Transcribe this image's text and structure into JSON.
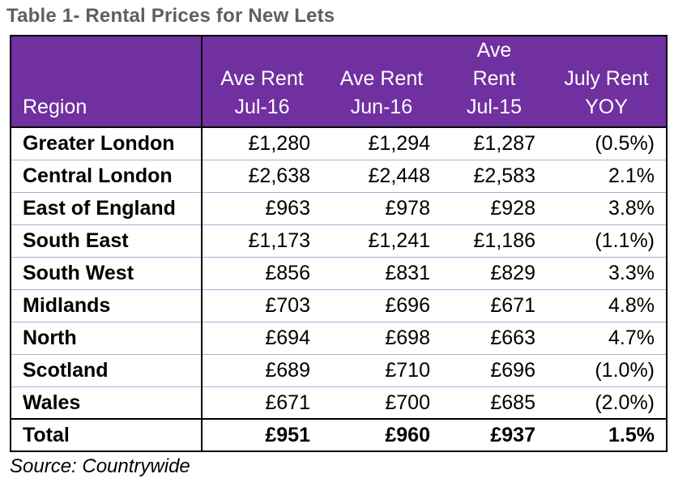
{
  "title": "Table 1- Rental Prices for New Lets",
  "table": {
    "headers": [
      [
        "Region"
      ],
      [
        "Ave Rent",
        "Jul-16"
      ],
      [
        "Ave Rent",
        "Jun-16"
      ],
      [
        "Ave",
        "Rent",
        "Jul-15"
      ],
      [
        "July Rent",
        "YOY"
      ]
    ],
    "rows": [
      {
        "region": "Greater London",
        "jul16": "£1,280",
        "jun16": "£1,294",
        "jul15": "£1,287",
        "yoy": "(0.5%)"
      },
      {
        "region": "Central London",
        "jul16": "£2,638",
        "jun16": "£2,448",
        "jul15": "£2,583",
        "yoy": "2.1%"
      },
      {
        "region": "East of England",
        "jul16": "£963",
        "jun16": "£978",
        "jul15": "£928",
        "yoy": "3.8%"
      },
      {
        "region": "South East",
        "jul16": "£1,173",
        "jun16": "£1,241",
        "jul15": "£1,186",
        "yoy": "(1.1%)"
      },
      {
        "region": "South West",
        "jul16": "£856",
        "jun16": "£831",
        "jul15": "£829",
        "yoy": "3.3%"
      },
      {
        "region": "Midlands",
        "jul16": "£703",
        "jun16": "£696",
        "jul15": "£671",
        "yoy": "4.8%"
      },
      {
        "region": "North",
        "jul16": "£694",
        "jun16": "£698",
        "jul15": "£663",
        "yoy": "4.7%"
      },
      {
        "region": "Scotland",
        "jul16": "£689",
        "jun16": "£710",
        "jul15": "£696",
        "yoy": "(1.0%)"
      },
      {
        "region": "Wales",
        "jul16": "£671",
        "jun16": "£700",
        "jul15": "£685",
        "yoy": "(2.0%)"
      }
    ],
    "total": {
      "region": "Total",
      "jul16": "£951",
      "jun16": "£960",
      "jul15": "£937",
      "yoy": "1.5%"
    }
  },
  "source": "Source: Countrywide",
  "colors": {
    "header_bg": "#7030a0",
    "title_text": "#5f5f5f",
    "row_divider": "#9fb4d8"
  }
}
